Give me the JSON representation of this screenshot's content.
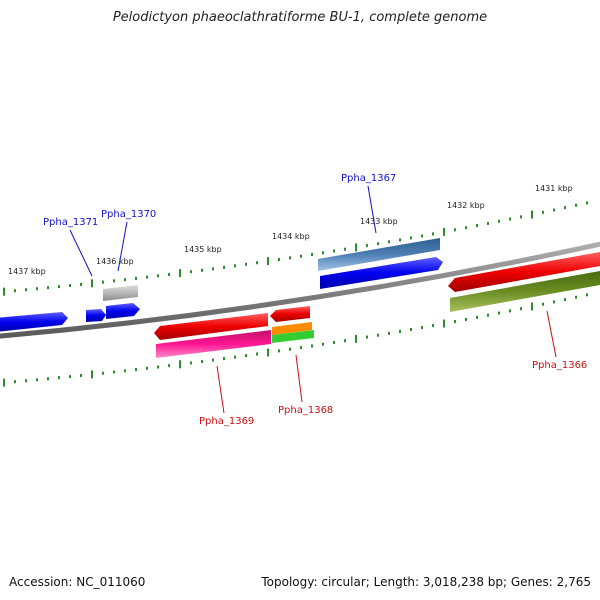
{
  "title": "Pelodictyon phaeoclathratiforme BU-1, complete genome",
  "footer": {
    "accession": "Accession: NC_011060",
    "topology": "Topology: circular; Length: 3,018,238 bp; Genes: 2,765"
  },
  "scale_labels": [
    "1437 kbp",
    "1436 kbp",
    "1435 kbp",
    "1434 kbp",
    "1433 kbp",
    "1432 kbp",
    "1431 kbp"
  ],
  "gene_labels": {
    "forward": [
      "Ppha_1371",
      "Ppha_1370",
      "Ppha_1367"
    ],
    "reverse": [
      "Ppha_1369",
      "Ppha_1368",
      "Ppha_1366"
    ]
  },
  "colors": {
    "backbone": "#808080",
    "ticks": "#2e8b2e",
    "forward_label": "#1010cc",
    "reverse_label": "#cc1010",
    "blue_gene": "#0000ee",
    "steel_gene": "#4f7fb5",
    "grey_gene": "#b8b8b8",
    "red_gene": "#ee0000",
    "magenta_gene": "#ff1493",
    "orange_gene": "#ff8c00",
    "green_gene": "#33cc33",
    "olive_gene": "#6b8e23"
  }
}
